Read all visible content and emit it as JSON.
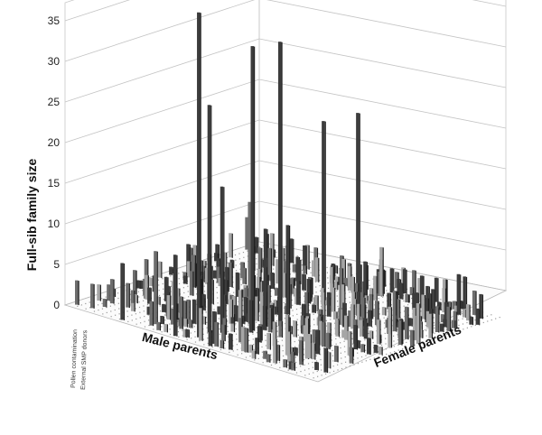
{
  "chart_data": {
    "type": "bar",
    "subtype": "3d-bar",
    "title": "",
    "zlabel": "Full-sib family size",
    "xlabel": "Male parents",
    "ylabel": "Female parents",
    "zlim": [
      0,
      35
    ],
    "z_ticks": [
      "0",
      "5",
      "10",
      "15",
      "20",
      "25",
      "30",
      "35"
    ],
    "x_axis_labels": [
      "Pollen contamination",
      "External SMP donors"
    ],
    "grid": true,
    "colors": {
      "dark": "#3c3c3c",
      "mid": "#6e6e6e",
      "light": "#a6a6a6"
    },
    "tall_bars": [
      {
        "male": 0.48,
        "female": 0.05,
        "value": 40,
        "shade": "dark"
      },
      {
        "male": 0.47,
        "female": 0.12,
        "value": 28,
        "shade": "dark"
      },
      {
        "male": 0.55,
        "female": 0.25,
        "value": 35,
        "shade": "dark"
      },
      {
        "male": 0.58,
        "female": 0.36,
        "value": 35,
        "shade": "dark"
      },
      {
        "male": 0.5,
        "female": 0.7,
        "value": 22,
        "shade": "dark"
      },
      {
        "male": 0.52,
        "female": 0.86,
        "value": 22,
        "shade": "dark"
      },
      {
        "male": 0.5,
        "female": 0.15,
        "value": 18,
        "shade": "dark"
      },
      {
        "male": 0.5,
        "female": 0.3,
        "value": 15,
        "shade": "mid"
      },
      {
        "male": 0.55,
        "female": 0.32,
        "value": 12,
        "shade": "dark"
      },
      {
        "male": 0.52,
        "female": 0.48,
        "value": 11,
        "shade": "dark"
      },
      {
        "male": 0.42,
        "female": 0.0,
        "value": 10,
        "shade": "dark"
      },
      {
        "male": 0.3,
        "female": 0.05,
        "value": 9,
        "shade": "mid"
      },
      {
        "male": 0.2,
        "female": 0.0,
        "value": 7,
        "shade": "dark"
      }
    ]
  }
}
